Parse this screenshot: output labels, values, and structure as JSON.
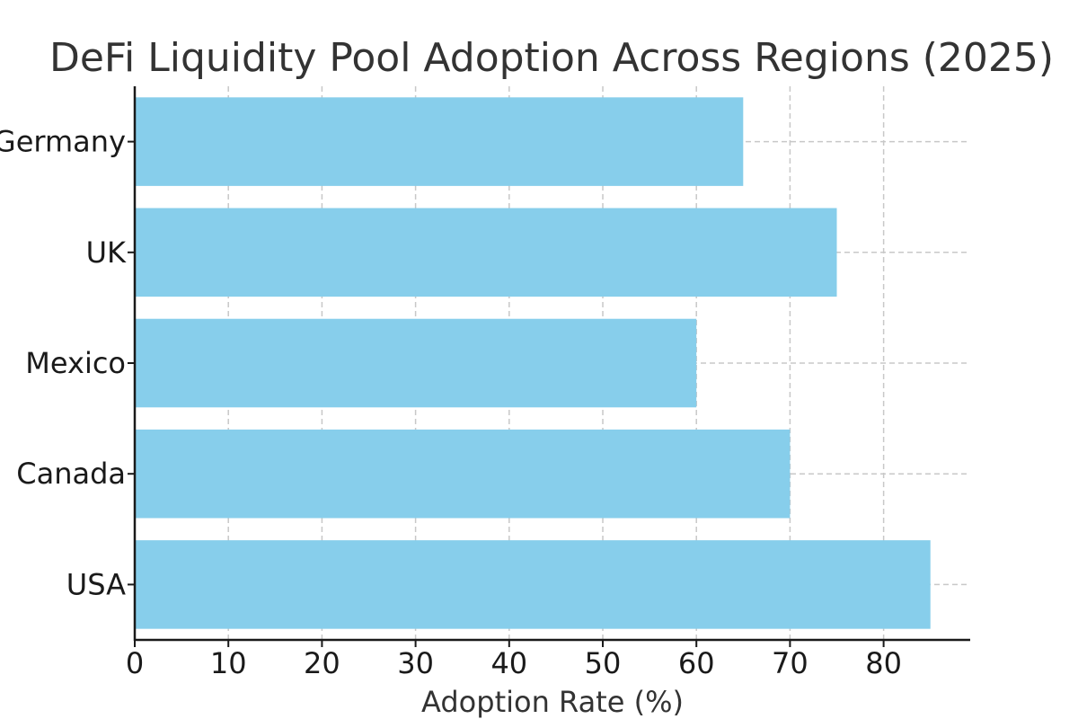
{
  "chart_data": {
    "type": "bar",
    "orientation": "horizontal",
    "title": "DeFi Liquidity Pool Adoption Across Regions (2025)",
    "xlabel": "Adoption Rate (%)",
    "ylabel": "",
    "categories": [
      "USA",
      "Canada",
      "Mexico",
      "UK",
      "Germany"
    ],
    "values": [
      85,
      70,
      60,
      75,
      65
    ],
    "xlim": [
      0,
      89.25
    ],
    "xticks": [
      0,
      10,
      20,
      30,
      40,
      50,
      60,
      70,
      80
    ],
    "grid": true,
    "bar_color": "#87ceeb"
  }
}
